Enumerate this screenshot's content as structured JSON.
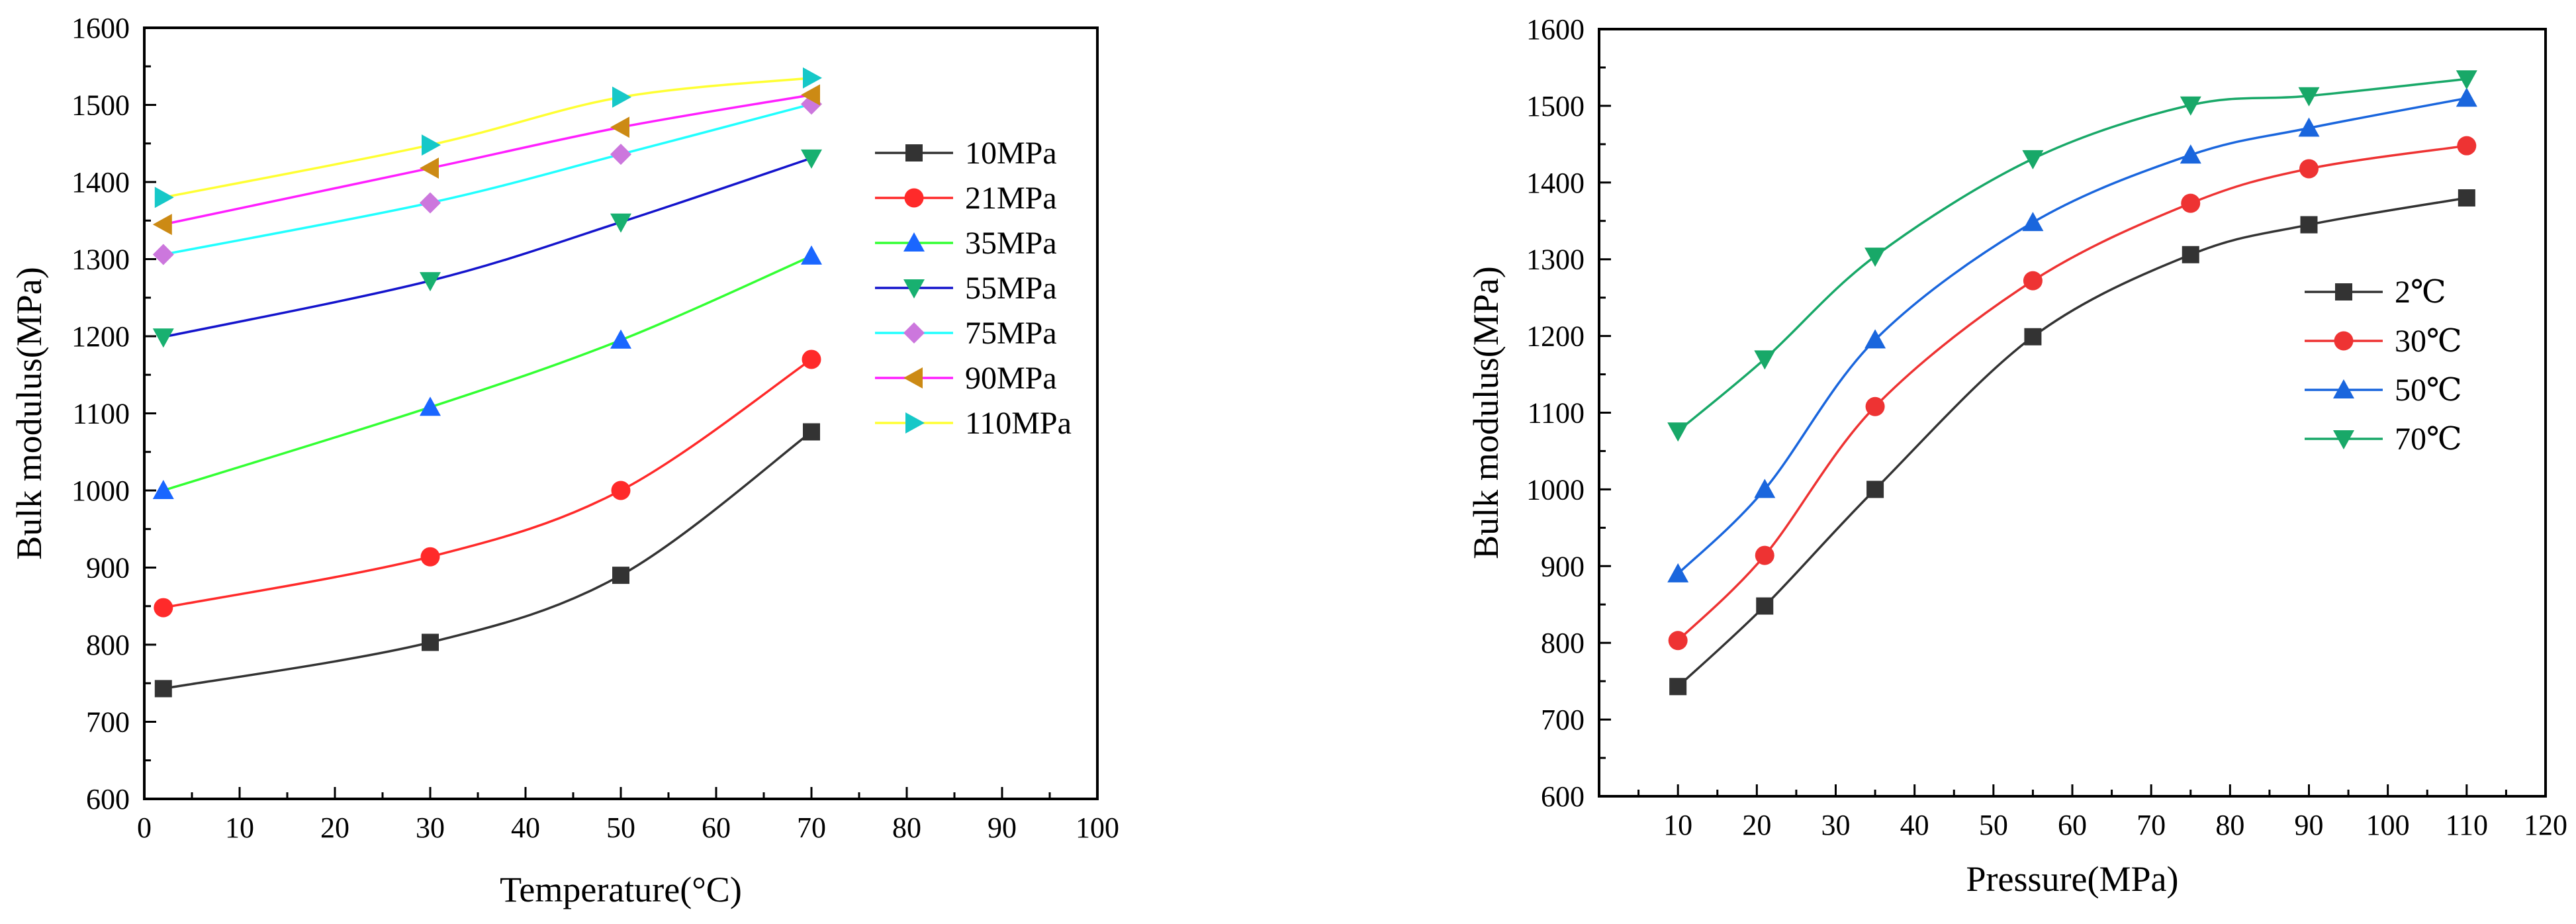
{
  "chart_data": [
    {
      "type": "line",
      "title": "",
      "xlabel": "Temperature(°C)",
      "ylabel": "Bulk modulus(MPa)",
      "xlim": [
        0,
        100
      ],
      "ylim": [
        600,
        1600
      ],
      "xticks": [
        0,
        10,
        20,
        30,
        40,
        50,
        60,
        70,
        80,
        90,
        100
      ],
      "yticks": [
        600,
        700,
        800,
        900,
        1000,
        1100,
        1200,
        1300,
        1400,
        1500,
        1600
      ],
      "grid": false,
      "legend_position": "right",
      "x": [
        2,
        30,
        50,
        70
      ],
      "series": [
        {
          "name": "10MPa",
          "color": "#333333",
          "marker": "square",
          "values": [
            743,
            803,
            890,
            1076
          ]
        },
        {
          "name": "21MPa",
          "color": "#ff2a2a",
          "marker": "circle",
          "values": [
            848,
            914,
            1000,
            1170
          ]
        },
        {
          "name": "35MPa",
          "color": "#33ff33",
          "marker": "triangle-up",
          "marker_color": "#1a66ff",
          "values": [
            1000,
            1108,
            1195,
            1304
          ]
        },
        {
          "name": "55MPa",
          "color": "#1414cc",
          "marker": "triangle-down",
          "marker_color": "#18b070",
          "values": [
            1199,
            1272,
            1348,
            1431
          ]
        },
        {
          "name": "75MPa",
          "color": "#21ffff",
          "marker": "diamond",
          "marker_color": "#cc77dd",
          "values": [
            1306,
            1373,
            1436,
            1501
          ]
        },
        {
          "name": "90MPa",
          "color": "#ff1fff",
          "marker": "triangle-left",
          "marker_color": "#cc8a14",
          "values": [
            1345,
            1418,
            1471,
            1513
          ]
        },
        {
          "name": "110MPa",
          "color": "#ffff33",
          "marker": "triangle-right",
          "marker_color": "#16c8c8",
          "values": [
            1380,
            1448,
            1510,
            1535
          ]
        }
      ]
    },
    {
      "type": "line",
      "title": "",
      "xlabel": "Pressure(MPa)",
      "ylabel": "Bulk modulus(MPa)",
      "xlim": [
        0,
        120
      ],
      "ylim": [
        600,
        1600
      ],
      "xticks": [
        10,
        20,
        30,
        40,
        50,
        60,
        70,
        80,
        90,
        100,
        110,
        120
      ],
      "yticks": [
        600,
        700,
        800,
        900,
        1000,
        1100,
        1200,
        1300,
        1400,
        1500,
        1600
      ],
      "grid": false,
      "legend_position": "right",
      "x": [
        10,
        21,
        35,
        55,
        75,
        90,
        110
      ],
      "series": [
        {
          "name": "2℃",
          "color": "#333333",
          "marker": "square",
          "values": [
            743,
            848,
            1000,
            1199,
            1306,
            1345,
            1380
          ]
        },
        {
          "name": "30℃",
          "color": "#ee3333",
          "marker": "circle",
          "values": [
            803,
            914,
            1108,
            1272,
            1373,
            1418,
            1448
          ]
        },
        {
          "name": "50℃",
          "color": "#1a66dd",
          "marker": "triangle-up",
          "values": [
            890,
            1000,
            1195,
            1348,
            1436,
            1471,
            1510
          ]
        },
        {
          "name": "70℃",
          "color": "#18a868",
          "marker": "triangle-down",
          "values": [
            1076,
            1170,
            1304,
            1431,
            1501,
            1513,
            1535
          ]
        }
      ]
    }
  ]
}
